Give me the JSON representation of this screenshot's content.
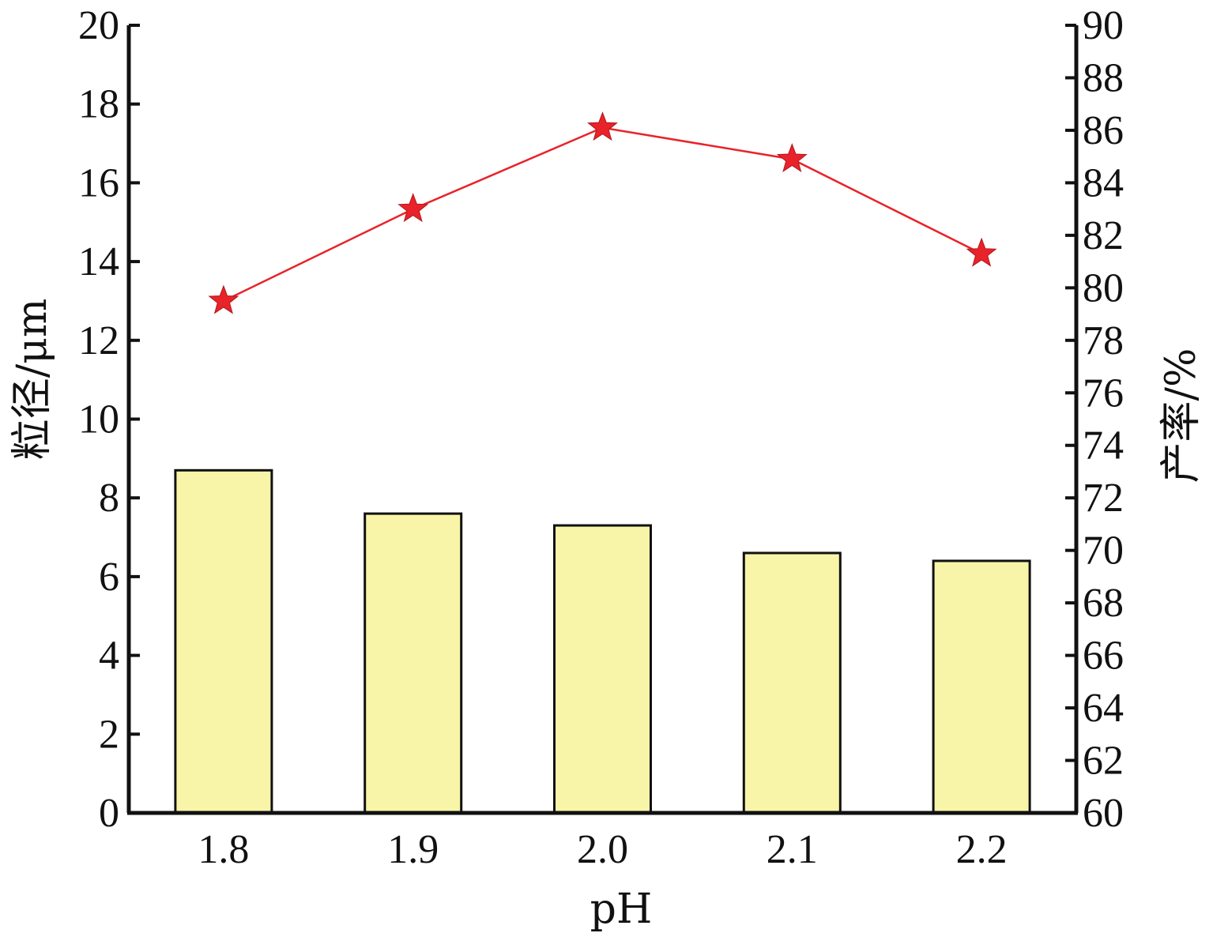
{
  "chart_data": {
    "type": "bar+line",
    "title": "",
    "xlabel": "pH",
    "categories": [
      "1.8",
      "1.9",
      "2.0",
      "2.1",
      "2.2"
    ],
    "y_left": {
      "label": "粒径/μm",
      "range": [
        0,
        20
      ],
      "ticks": [
        0,
        2,
        4,
        6,
        8,
        10,
        12,
        14,
        16,
        18,
        20
      ]
    },
    "y_right": {
      "label": "产率/%",
      "range": [
        60,
        90
      ],
      "ticks": [
        60,
        62,
        64,
        66,
        68,
        70,
        72,
        74,
        76,
        78,
        80,
        82,
        84,
        86,
        88,
        90
      ]
    },
    "series": [
      {
        "type": "bar",
        "axis": "left",
        "values": [
          8.7,
          7.6,
          7.3,
          6.6,
          6.4
        ],
        "color": "#f8f5a8",
        "edge_color": "#111111"
      },
      {
        "type": "line",
        "axis": "right",
        "marker": "star",
        "values": [
          79.5,
          83.0,
          86.1,
          84.9,
          81.3
        ],
        "color": "#e8232a"
      }
    ],
    "grid": false,
    "legend": "none"
  }
}
